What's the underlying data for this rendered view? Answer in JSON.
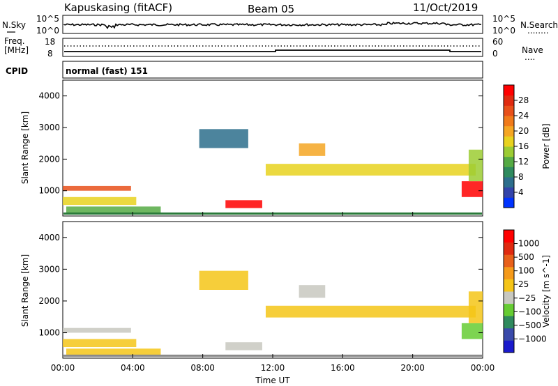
{
  "header": {
    "station": "Kapuskasing (fitACF)",
    "beam": "Beam 05",
    "date": "11/Oct/2019"
  },
  "noise_panel": {
    "left_label": "N.Sky",
    "right_label": "N.Search",
    "right_label_line": "........",
    "left_ticks": [
      "10^5",
      "10^0"
    ],
    "right_ticks": [
      "10^5",
      "10^0"
    ]
  },
  "freq_panel": {
    "left_label_line1": "Freq.",
    "left_label_line2": "[MHz]",
    "right_label": "Nave",
    "right_label_line": "....",
    "left_ticks": [
      "18",
      "8"
    ],
    "right_ticks": [
      "60",
      "0"
    ]
  },
  "cpid_panel": {
    "label": "CPID",
    "text": "normal (fast) 151"
  },
  "chart_data": [
    {
      "type": "heatmap",
      "name": "power",
      "ylabel": "Slant Range [km]",
      "yticks": [
        "4000",
        "3000",
        "2000",
        "1000"
      ],
      "ylim": [
        200,
        4500
      ],
      "xticks": [
        "00:00",
        "04:00",
        "08:00",
        "12:00",
        "16:00",
        "20:00",
        "00:00"
      ],
      "colorbar": {
        "label": "Power [dB]",
        "ticks": [
          "28",
          "24",
          "20",
          "16",
          "12",
          "8",
          "4"
        ],
        "colors": [
          "#0033ff",
          "#3344aa",
          "#2d6e8c",
          "#2f8a5e",
          "#55aa44",
          "#9ccc33",
          "#e8d21f",
          "#f5a623",
          "#f07a1a",
          "#e8501a",
          "#e02a10",
          "#ff0000"
        ],
        "range": [
          0,
          30
        ]
      },
      "regions": [
        {
          "t0": 0.0,
          "t1": 3.9,
          "r0": 1000,
          "r1": 1150,
          "v": 24
        },
        {
          "t0": 0.0,
          "t1": 4.2,
          "r0": 550,
          "r1": 800,
          "v": 16
        },
        {
          "t0": 0.2,
          "t1": 5.6,
          "r0": 300,
          "r1": 500,
          "v": 12
        },
        {
          "t0": 9.3,
          "t1": 11.4,
          "r0": 450,
          "r1": 700,
          "v": 28
        },
        {
          "t0": 7.8,
          "t1": 10.6,
          "r0": 2350,
          "r1": 2950,
          "v": 7
        },
        {
          "t0": 11.6,
          "t1": 23.6,
          "r0": 1480,
          "r1": 1850,
          "v": 16
        },
        {
          "t0": 13.5,
          "t1": 15.0,
          "r0": 2100,
          "r1": 2500,
          "v": 18
        },
        {
          "t0": 22.8,
          "t1": 24.0,
          "r0": 800,
          "r1": 1300,
          "v": 28
        },
        {
          "t0": 23.2,
          "t1": 24.0,
          "r0": 1300,
          "r1": 2300,
          "v": 14
        }
      ]
    },
    {
      "type": "heatmap",
      "name": "velocity",
      "ylabel": "Slant Range [km]",
      "yticks": [
        "4000",
        "3000",
        "2000",
        "1000"
      ],
      "ylim": [
        200,
        4500
      ],
      "xticks": [
        "00:00",
        "04:00",
        "08:00",
        "12:00",
        "16:00",
        "20:00",
        "00:00"
      ],
      "xlabel": "Time UT",
      "colorbar": {
        "label": "Velocity [m s^-1]",
        "ticks": [
          "1000",
          "500",
          "100",
          "25",
          "−25",
          "−100",
          "−500",
          "−1000"
        ],
        "colors": [
          "#1a1acc",
          "#3a4aaa",
          "#2f8a5e",
          "#66cc33",
          "#c8c8c0",
          "#f5c518",
          "#f59a1a",
          "#e8601a",
          "#e02a10",
          "#ff0000"
        ],
        "range": [
          -1200,
          1200
        ]
      },
      "regions": [
        {
          "t0": 0.0,
          "t1": 3.9,
          "r0": 1000,
          "r1": 1150,
          "v": -200
        },
        {
          "t0": 0.0,
          "t1": 4.2,
          "r0": 550,
          "r1": 800,
          "v": 0
        },
        {
          "t0": 0.2,
          "t1": 5.6,
          "r0": 300,
          "r1": 500,
          "v": 50
        },
        {
          "t0": 9.3,
          "t1": 11.4,
          "r0": 450,
          "r1": 700,
          "v": -100
        },
        {
          "t0": 7.8,
          "t1": 10.6,
          "r0": 2350,
          "r1": 2950,
          "v": 0
        },
        {
          "t0": 11.6,
          "t1": 23.6,
          "r0": 1480,
          "r1": 1850,
          "v": 0
        },
        {
          "t0": 13.5,
          "t1": 15.0,
          "r0": 2100,
          "r1": 2500,
          "v": -150
        },
        {
          "t0": 22.8,
          "t1": 24.0,
          "r0": 800,
          "r1": 1300,
          "v": -300
        },
        {
          "t0": 23.2,
          "t1": 24.0,
          "r0": 1300,
          "r1": 2300,
          "v": 0
        }
      ]
    }
  ]
}
